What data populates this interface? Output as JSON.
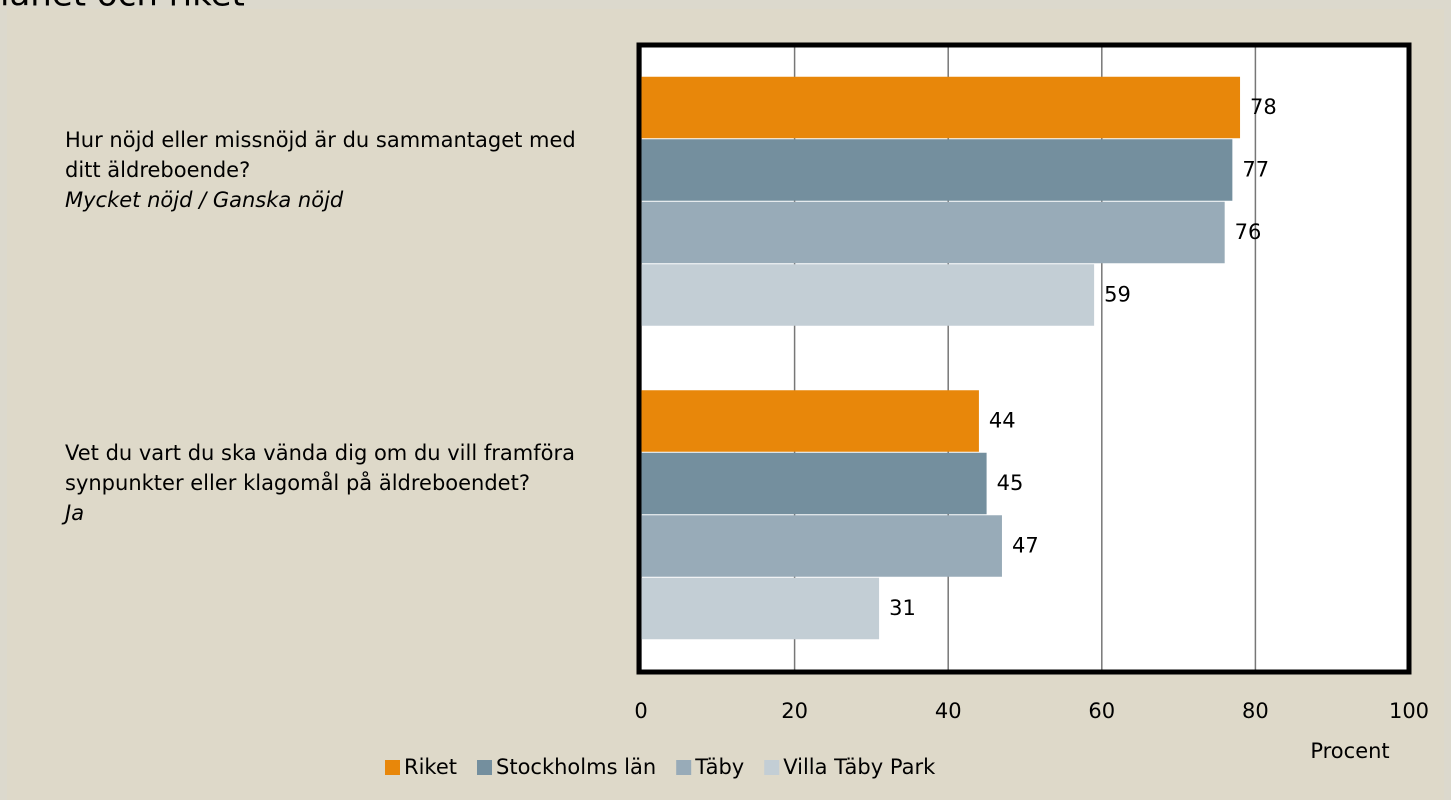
{
  "chart_data": {
    "type": "hbar",
    "title": "länet och riket",
    "categories": [
      "Hur nöjd eller missnöjd är du sammantaget med ditt äldreboende?",
      "Vet du vart du ska vända dig om du vill framföra synpunkter eller klagomål på äldreboendet?"
    ],
    "category_notes": [
      "Mycket nöjd / Ganska nöjd",
      "Ja"
    ],
    "series": [
      {
        "name": "Riket",
        "color": "#e8870a",
        "values": [
          78,
          44
        ]
      },
      {
        "name": "Stockholms län",
        "color": "#748f9e",
        "values": [
          77,
          45
        ]
      },
      {
        "name": "Täby",
        "color": "#98abb8",
        "values": [
          76,
          47
        ]
      },
      {
        "name": "Villa Täby Park",
        "color": "#c3ced5",
        "values": [
          59,
          31
        ]
      }
    ],
    "xlabel": "Procent",
    "xlim": [
      0,
      100
    ],
    "xticks": [
      0,
      20,
      40,
      60,
      80,
      100
    ],
    "grid": true,
    "legend": "bottom"
  }
}
